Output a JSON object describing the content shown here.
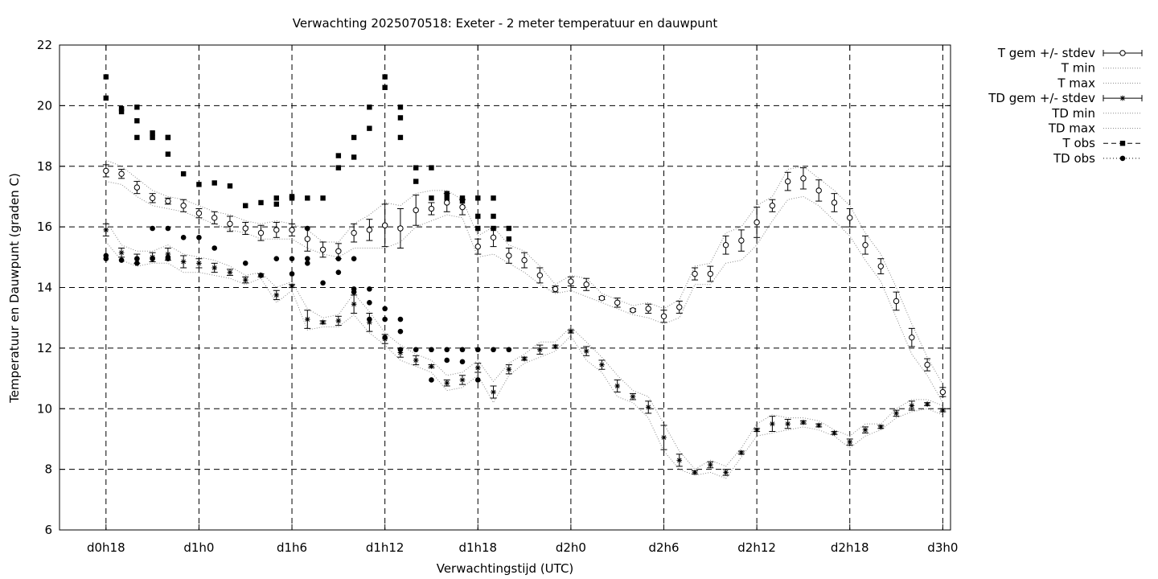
{
  "chart_data": {
    "type": "scatter",
    "title": "Verwachting 2025070518: Exeter - 2 meter temperatuur en dauwpunt",
    "xlabel": "Verwachtingstijd (UTC)",
    "ylabel": "Temperatuur en Dauwpunt (graden C)",
    "x_unit": "hours since d0h0",
    "xlim": [
      15,
      72.5
    ],
    "ylim": [
      6,
      22
    ],
    "yticks": [
      6,
      8,
      10,
      12,
      14,
      16,
      18,
      20,
      22
    ],
    "xticks": [
      {
        "x": 18,
        "label": "d0h18"
      },
      {
        "x": 24,
        "label": "d1h0"
      },
      {
        "x": 30,
        "label": "d1h6"
      },
      {
        "x": 36,
        "label": "d1h12"
      },
      {
        "x": 42,
        "label": "d1h18"
      },
      {
        "x": 48,
        "label": "d2h0"
      },
      {
        "x": 54,
        "label": "d2h6"
      },
      {
        "x": 60,
        "label": "d2h12"
      },
      {
        "x": 66,
        "label": "d2h18"
      },
      {
        "x": 72,
        "label": "d3h0"
      }
    ],
    "grid": true,
    "legend_position": "outside-top-right",
    "legend": [
      "T gem +/- stdev",
      "T min",
      "T max",
      "TD gem +/- stdev",
      "TD min",
      "TD max",
      "T obs",
      "TD obs"
    ],
    "series": [
      {
        "name": "T gem +/- stdev",
        "x": [
          18,
          19,
          20,
          21,
          22,
          23,
          24,
          25,
          26,
          27,
          28,
          29,
          30,
          31,
          32,
          33,
          34,
          35,
          36,
          37,
          38,
          39,
          40,
          41,
          42,
          43,
          44,
          45,
          46,
          47,
          48,
          49,
          50,
          51,
          52,
          53,
          54,
          55,
          56,
          57,
          58,
          59,
          60,
          61,
          62,
          63,
          64,
          65,
          66,
          67,
          68,
          69,
          70,
          71,
          72
        ],
        "y": [
          17.85,
          17.75,
          17.3,
          16.95,
          16.85,
          16.7,
          16.45,
          16.3,
          16.1,
          15.95,
          15.8,
          15.9,
          15.9,
          15.6,
          15.25,
          15.2,
          15.8,
          15.9,
          16.05,
          15.95,
          16.55,
          16.6,
          16.8,
          16.65,
          15.35,
          15.65,
          15.05,
          14.9,
          14.4,
          13.95,
          14.2,
          14.1,
          13.65,
          13.5,
          13.25,
          13.3,
          13.05,
          13.35,
          14.45,
          14.45,
          15.4,
          15.55,
          16.15,
          16.7,
          17.5,
          17.6,
          17.2,
          16.8,
          16.3,
          15.4,
          14.7,
          13.55,
          12.35,
          11.45,
          10.55
        ],
        "stdev": [
          0.2,
          0.15,
          0.2,
          0.15,
          0.1,
          0.2,
          0.15,
          0.2,
          0.25,
          0.2,
          0.25,
          0.25,
          0.2,
          0.4,
          0.25,
          0.25,
          0.3,
          0.35,
          0.7,
          0.65,
          0.5,
          0.2,
          0.3,
          0.25,
          0.25,
          0.3,
          0.25,
          0.25,
          0.25,
          0.1,
          0.15,
          0.2,
          0.05,
          0.15,
          0.05,
          0.15,
          0.2,
          0.2,
          0.2,
          0.25,
          0.3,
          0.35,
          0.5,
          0.2,
          0.3,
          0.35,
          0.35,
          0.3,
          0.3,
          0.3,
          0.25,
          0.3,
          0.3,
          0.2,
          0.15
        ]
      },
      {
        "name": "T min",
        "x": [
          18,
          19,
          20,
          21,
          22,
          23,
          24,
          25,
          26,
          27,
          28,
          29,
          30,
          31,
          32,
          33,
          34,
          35,
          36,
          37,
          38,
          39,
          40,
          41,
          42,
          43,
          44,
          45,
          46,
          47,
          48,
          49,
          50,
          51,
          52,
          53,
          54,
          55,
          56,
          57,
          58,
          59,
          60,
          61,
          62,
          63,
          64,
          65,
          66,
          67,
          68,
          69,
          70,
          71,
          72
        ],
        "y": [
          17.5,
          17.4,
          17.0,
          16.7,
          16.6,
          16.5,
          16.3,
          16.1,
          15.9,
          15.8,
          15.6,
          15.6,
          15.6,
          15.3,
          15.1,
          15.0,
          15.3,
          15.3,
          15.3,
          15.5,
          16.0,
          16.2,
          16.4,
          16.3,
          15.0,
          15.1,
          14.8,
          14.5,
          14.1,
          13.8,
          13.9,
          13.7,
          13.5,
          13.3,
          13.1,
          13.0,
          12.8,
          13.0,
          14.1,
          14.1,
          14.8,
          14.9,
          15.4,
          16.2,
          16.9,
          17.0,
          16.7,
          16.2,
          15.7,
          14.9,
          14.2,
          13.0,
          11.8,
          11.1,
          10.2
        ]
      },
      {
        "name": "T max",
        "x": [
          18,
          19,
          20,
          21,
          22,
          23,
          24,
          25,
          26,
          27,
          28,
          29,
          30,
          31,
          32,
          33,
          34,
          35,
          36,
          37,
          38,
          39,
          40,
          41,
          42,
          43,
          44,
          45,
          46,
          47,
          48,
          49,
          50,
          51,
          52,
          53,
          54,
          55,
          56,
          57,
          58,
          59,
          60,
          61,
          62,
          63,
          64,
          65,
          66,
          67,
          68,
          69,
          70,
          71,
          72
        ],
        "y": [
          18.2,
          18.0,
          17.6,
          17.2,
          17.0,
          16.9,
          16.7,
          16.5,
          16.4,
          16.2,
          16.1,
          16.2,
          16.1,
          15.9,
          15.5,
          15.5,
          16.1,
          16.4,
          16.8,
          16.7,
          17.1,
          17.2,
          17.2,
          16.9,
          15.7,
          16.0,
          15.4,
          15.2,
          14.7,
          14.1,
          14.4,
          14.3,
          13.8,
          13.6,
          13.4,
          13.5,
          13.3,
          13.6,
          14.7,
          14.8,
          15.8,
          16.0,
          16.7,
          17.0,
          17.9,
          18.0,
          17.6,
          17.2,
          16.7,
          15.8,
          15.1,
          14.0,
          12.8,
          11.7,
          10.8
        ]
      },
      {
        "name": "TD gem +/- stdev",
        "x": [
          18,
          19,
          20,
          21,
          22,
          23,
          24,
          25,
          26,
          27,
          28,
          29,
          30,
          31,
          32,
          33,
          34,
          35,
          36,
          37,
          38,
          39,
          40,
          41,
          42,
          43,
          44,
          45,
          46,
          47,
          48,
          49,
          50,
          51,
          52,
          53,
          54,
          55,
          56,
          57,
          58,
          59,
          60,
          61,
          62,
          63,
          64,
          65,
          66,
          67,
          68,
          69,
          70,
          71,
          72
        ],
        "y": [
          15.9,
          15.15,
          14.95,
          15.0,
          15.1,
          14.85,
          14.8,
          14.65,
          14.5,
          14.25,
          14.4,
          13.75,
          14.05,
          12.95,
          12.85,
          12.9,
          13.45,
          12.85,
          12.3,
          11.85,
          11.6,
          11.4,
          10.85,
          10.95,
          11.35,
          10.55,
          11.3,
          11.65,
          11.95,
          12.05,
          12.55,
          11.9,
          11.45,
          10.75,
          10.4,
          10.05,
          9.05,
          8.3,
          7.9,
          8.15,
          7.9,
          8.55,
          9.3,
          9.5,
          9.5,
          9.55,
          9.45,
          9.2,
          8.9,
          9.3,
          9.4,
          9.85,
          10.1,
          10.15,
          9.95
        ],
        "stdev": [
          0.2,
          0.15,
          0.15,
          0.15,
          0.2,
          0.2,
          0.15,
          0.15,
          0.1,
          0.1,
          0.05,
          0.15,
          0.05,
          0.3,
          0.05,
          0.15,
          0.3,
          0.3,
          0.15,
          0.15,
          0.15,
          0.05,
          0.1,
          0.15,
          0.15,
          0.2,
          0.15,
          0.05,
          0.15,
          0.05,
          0.05,
          0.15,
          0.15,
          0.2,
          0.1,
          0.2,
          0.4,
          0.2,
          0.05,
          0.1,
          0.1,
          0.05,
          0.05,
          0.25,
          0.15,
          0.05,
          0.05,
          0.05,
          0.1,
          0.1,
          0.05,
          0.1,
          0.15,
          0.05,
          0.05
        ]
      },
      {
        "name": "TD min",
        "x": [
          18,
          19,
          20,
          21,
          22,
          23,
          24,
          25,
          26,
          27,
          28,
          29,
          30,
          31,
          32,
          33,
          34,
          35,
          36,
          37,
          38,
          39,
          40,
          41,
          42,
          43,
          44,
          45,
          46,
          47,
          48,
          49,
          50,
          51,
          52,
          53,
          54,
          55,
          56,
          57,
          58,
          59,
          60,
          61,
          62,
          63,
          64,
          65,
          66,
          67,
          68,
          69,
          70,
          71,
          72
        ],
        "y": [
          15.5,
          14.9,
          14.7,
          14.8,
          14.8,
          14.5,
          14.5,
          14.4,
          14.3,
          14.1,
          14.3,
          13.5,
          13.9,
          12.6,
          12.7,
          12.7,
          13.1,
          12.5,
          12.1,
          11.6,
          11.4,
          11.2,
          10.6,
          10.7,
          11.1,
          10.2,
          11.1,
          11.5,
          11.7,
          11.9,
          12.4,
          11.6,
          11.2,
          10.4,
          10.2,
          9.7,
          8.6,
          8.0,
          7.8,
          7.9,
          7.7,
          8.4,
          9.1,
          9.2,
          9.3,
          9.4,
          9.3,
          9.1,
          8.7,
          9.1,
          9.3,
          9.7,
          9.9,
          10.0,
          9.8
        ]
      },
      {
        "name": "TD max",
        "x": [
          18,
          19,
          20,
          21,
          22,
          23,
          24,
          25,
          26,
          27,
          28,
          29,
          30,
          31,
          32,
          33,
          34,
          35,
          36,
          37,
          38,
          39,
          40,
          41,
          42,
          43,
          44,
          45,
          46,
          47,
          48,
          49,
          50,
          51,
          52,
          53,
          54,
          55,
          56,
          57,
          58,
          59,
          60,
          61,
          62,
          63,
          64,
          65,
          66,
          67,
          68,
          69,
          70,
          71,
          72
        ],
        "y": [
          16.2,
          15.4,
          15.2,
          15.2,
          15.4,
          15.1,
          15.0,
          14.9,
          14.7,
          14.4,
          14.5,
          14.0,
          14.2,
          13.3,
          13.0,
          13.1,
          13.8,
          13.2,
          12.5,
          12.1,
          11.8,
          11.6,
          11.1,
          11.2,
          11.6,
          10.9,
          11.5,
          11.8,
          12.2,
          12.2,
          12.7,
          12.2,
          11.7,
          11.1,
          10.6,
          10.4,
          9.5,
          8.6,
          8.0,
          8.3,
          8.1,
          8.7,
          9.5,
          9.8,
          9.7,
          9.7,
          9.6,
          9.3,
          9.1,
          9.5,
          9.5,
          10.0,
          10.3,
          10.3,
          10.1
        ]
      },
      {
        "name": "T obs",
        "x": [
          18,
          18,
          19,
          19,
          20,
          20,
          20,
          21,
          21,
          22,
          22,
          22,
          23,
          24,
          25,
          26,
          27,
          28,
          29,
          29,
          30,
          30,
          31,
          32,
          33,
          33,
          34,
          34,
          35,
          35,
          36,
          36,
          37,
          37,
          37,
          38,
          38,
          39,
          39,
          40,
          40,
          41,
          41,
          42,
          42,
          42,
          43,
          43,
          43,
          44,
          44
        ],
        "y": [
          20.95,
          20.25,
          19.9,
          19.8,
          19.95,
          19.5,
          18.95,
          19.1,
          18.95,
          18.95,
          18.95,
          18.4,
          17.75,
          17.4,
          17.45,
          17.35,
          16.7,
          16.8,
          16.95,
          16.75,
          17.0,
          16.95,
          16.95,
          16.95,
          18.35,
          17.95,
          18.95,
          18.3,
          19.95,
          19.25,
          20.95,
          20.6,
          19.95,
          19.6,
          18.95,
          17.95,
          17.5,
          17.95,
          16.95,
          17.1,
          16.95,
          16.95,
          16.85,
          16.95,
          16.35,
          15.95,
          16.95,
          16.35,
          15.95,
          15.95,
          15.6
        ]
      },
      {
        "name": "TD obs",
        "x": [
          18,
          18,
          19,
          20,
          20,
          21,
          21,
          22,
          22,
          22,
          23,
          24,
          25,
          27,
          28,
          29,
          30,
          30,
          31,
          31,
          31,
          32,
          33,
          33,
          34,
          34,
          34,
          35,
          35,
          35,
          36,
          36,
          36,
          37,
          37,
          37,
          38,
          39,
          39,
          40,
          40,
          41,
          41,
          42,
          42,
          43,
          44
        ],
        "y": [
          15.05,
          14.95,
          14.9,
          14.95,
          14.8,
          15.95,
          14.95,
          15.95,
          15.0,
          14.95,
          15.65,
          15.65,
          15.3,
          14.8,
          14.4,
          14.95,
          14.95,
          14.45,
          15.95,
          14.95,
          14.8,
          14.15,
          14.95,
          14.5,
          14.95,
          13.95,
          13.85,
          13.95,
          13.5,
          12.95,
          13.3,
          12.95,
          12.35,
          12.95,
          12.55,
          11.95,
          11.95,
          11.95,
          10.95,
          11.95,
          11.6,
          11.95,
          11.55,
          11.95,
          10.95,
          11.95,
          11.95
        ]
      }
    ]
  }
}
